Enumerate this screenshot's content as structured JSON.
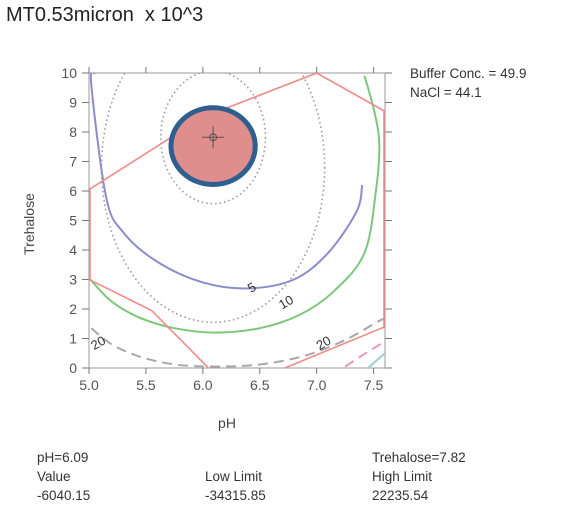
{
  "title": "MT0.53micron  x 10^3",
  "fixed_factors": [
    "Buffer Conc. = 49.9",
    "NaCl = 44.1"
  ],
  "readout": {
    "x_label": "pH=6.09",
    "y_label": "Trehalose=7.82",
    "value_label": "Value",
    "value": "-6040.15",
    "low_label": "Low Limit",
    "low": "-34315.85",
    "high_label": "High Limit",
    "high": "22235.54"
  },
  "colors": {
    "constraint": "#f08a8a",
    "contour_5": "#8c8ccc",
    "contour_10": "#7cc77c",
    "contour_20": "#a8a8a8",
    "optimum_fill": "#e08d8d",
    "optimum_ring": "#2e5f8e",
    "ci_ring": "#999999"
  },
  "chart_data": {
    "type": "contour",
    "xlabel": "pH",
    "ylabel": "Trehalose",
    "xlim": [
      5.0,
      7.6
    ],
    "ylim": [
      0,
      10
    ],
    "x_ticks": [
      "5.0",
      "5.5",
      "6.0",
      "6.5",
      "7.0",
      "7.5"
    ],
    "x_tick_values": [
      5.0,
      5.5,
      6.0,
      6.5,
      7.0,
      7.5
    ],
    "y_ticks": [
      "0",
      "1",
      "2",
      "3",
      "4",
      "5",
      "6",
      "7",
      "8",
      "9",
      "10"
    ],
    "y_tick_values": [
      0,
      1,
      2,
      3,
      4,
      5,
      6,
      7,
      8,
      9,
      10
    ],
    "optimum": {
      "x": 6.09,
      "y": 7.82
    },
    "contours": [
      {
        "label": "5",
        "color": "#8c8ccc",
        "dashed": false,
        "points": [
          [
            5.05,
            10
          ],
          [
            5.02,
            9.6
          ],
          [
            5.15,
            5.8
          ],
          [
            5.3,
            4.6
          ],
          [
            5.6,
            3.6
          ],
          [
            6.0,
            2.9
          ],
          [
            6.4,
            2.7
          ],
          [
            6.8,
            3.0
          ],
          [
            7.1,
            3.9
          ],
          [
            7.35,
            5.3
          ],
          [
            7.4,
            6.2
          ]
        ],
        "labels": [
          {
            "text": "5",
            "x": 6.45,
            "y": 2.6
          }
        ]
      },
      {
        "label": "10",
        "color": "#7cc77c",
        "dashed": false,
        "points": [
          [
            5.0,
            3.05
          ],
          [
            5.2,
            2.25
          ],
          [
            5.45,
            1.7
          ],
          [
            5.75,
            1.35
          ],
          [
            6.1,
            1.2
          ],
          [
            6.5,
            1.35
          ],
          [
            6.85,
            1.8
          ],
          [
            7.15,
            2.6
          ],
          [
            7.42,
            3.9
          ],
          [
            7.52,
            6.0
          ],
          [
            7.55,
            7.6
          ],
          [
            7.5,
            8.8
          ],
          [
            7.42,
            9.9
          ]
        ],
        "labels": [
          {
            "text": "10",
            "x": 6.75,
            "y": 2.1
          }
        ]
      },
      {
        "label": "20",
        "color": "#a8a8a8",
        "dashed": true,
        "points": [
          [
            5.02,
            1.35
          ],
          [
            5.2,
            0.8
          ],
          [
            5.45,
            0.38
          ],
          [
            5.75,
            0.12
          ],
          [
            6.1,
            0.05
          ],
          [
            6.5,
            0.12
          ],
          [
            6.9,
            0.42
          ],
          [
            7.25,
            0.95
          ],
          [
            7.55,
            1.6
          ],
          [
            7.6,
            1.65
          ]
        ],
        "labels": [
          {
            "text": "20",
            "x": 5.1,
            "y": 0.72
          },
          {
            "text": "20",
            "x": 7.08,
            "y": 0.72
          }
        ]
      },
      {
        "label": "",
        "color": "#e89abe",
        "dashed": true,
        "points": [
          [
            7.25,
            0.05
          ],
          [
            7.45,
            0.55
          ],
          [
            7.6,
            0.9
          ]
        ],
        "labels": []
      },
      {
        "label": "",
        "color": "#9fcfcf",
        "dashed": false,
        "points": [
          [
            7.45,
            0.0
          ],
          [
            7.6,
            0.5
          ]
        ],
        "labels": []
      }
    ],
    "ci_rings": [
      {
        "cx": 6.09,
        "cy": 7.82,
        "rx": 0.46,
        "ry": 2.25
      },
      {
        "cx": 6.09,
        "cy": 6.8,
        "rx": 0.98,
        "ry": 5.25
      }
    ],
    "optimum_region": {
      "cx": 6.09,
      "cy": 7.52,
      "rx": 0.37,
      "ry": 1.3
    },
    "constraints": [
      [
        [
          5.0,
          6.05
        ],
        [
          6.0,
          8.5
        ],
        [
          7.0,
          10.0
        ]
      ],
      [
        [
          7.0,
          10.0
        ],
        [
          7.6,
          8.7
        ]
      ],
      [
        [
          5.0,
          3.0
        ],
        [
          5.55,
          1.95
        ],
        [
          6.05,
          0.0
        ]
      ],
      [
        [
          6.72,
          0.0
        ],
        [
          7.6,
          1.4
        ]
      ]
    ]
  }
}
